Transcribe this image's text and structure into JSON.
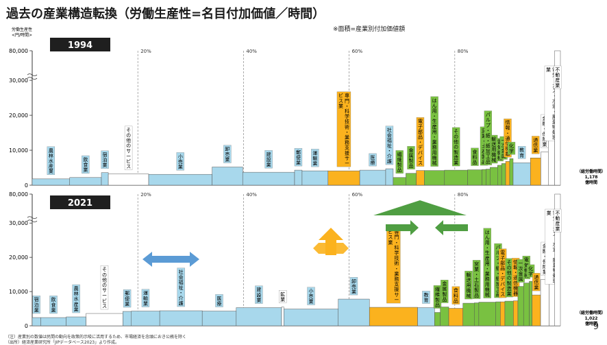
{
  "title": "過去の産業構造転換（労働生産性=名目付加価値／時間）",
  "note": "※面積=産業別付加価値額",
  "page_number": "9",
  "footnotes": [
    "（注）産業別の数値は民間の動向を政策的示唆に活用するため、市場経済を念頭におき公務を除く",
    "（出所）経済産業研究所「JIPデータベース2023」より作成。"
  ],
  "colors": {
    "light_blue": "#a8d8ec",
    "orange": "#fbb21e",
    "green": "#79c141",
    "gray": "#d9d9d9",
    "white": "#ffffff",
    "gain_arrow": "#4f9e42",
    "shift_arrow": "#5b9bd5",
    "orange_arrow": "#fbb21e"
  },
  "chart_data": [
    {
      "type": "area",
      "year_label": "1994",
      "ylabel": "労働生産性<円/時間>",
      "y_ticks": [
        "0",
        "10,000",
        "20,000",
        "30,000",
        "80,000"
      ],
      "x_ticks": [
        "20%",
        "40%",
        "60%",
        "80%"
      ],
      "total_hours": "（総労働時間）\n1,178\n億時間",
      "industries": [
        {
          "name": "農林水産業",
          "share": 6.5,
          "productivity": 1800,
          "color": "light_blue"
        },
        {
          "name": "飲食業",
          "share": 5.5,
          "productivity": 2200,
          "color": "light_blue"
        },
        {
          "name": "宿泊業",
          "share": 1.2,
          "productivity": 3600,
          "color": "light_blue"
        },
        {
          "name": "その他のサービス",
          "share": 7.0,
          "productivity": 3200,
          "color": "white"
        },
        {
          "name": "小売業",
          "share": 11.0,
          "productivity": 3100,
          "color": "light_blue"
        },
        {
          "name": "卸売業",
          "share": 5.3,
          "productivity": 5200,
          "color": "light_blue"
        },
        {
          "name": "建設業",
          "share": 9.0,
          "productivity": 3700,
          "color": "light_blue"
        },
        {
          "name": "郵便業",
          "share": 1.3,
          "productivity": 4300,
          "color": "light_blue"
        },
        {
          "name": "運輸業",
          "share": 4.5,
          "productivity": 4100,
          "color": "light_blue"
        },
        {
          "name": "専門・科学技術、業務支援サービス業",
          "share": 5.5,
          "productivity": 4100,
          "color": "orange"
        },
        {
          "name": "医療",
          "share": 4.5,
          "productivity": 4300,
          "color": "light_blue"
        },
        {
          "name": "社会福祉・介護",
          "share": 1.3,
          "productivity": 4700,
          "color": "light_blue"
        },
        {
          "name": "繊維製品",
          "share": 2.2,
          "productivity": 2200,
          "color": "green"
        },
        {
          "name": "金属製品",
          "share": 1.8,
          "productivity": 3400,
          "color": "green"
        },
        {
          "name": "電子部品・デバイス",
          "share": 1.4,
          "productivity": 4200,
          "color": "orange"
        },
        {
          "name": "はん用・生産用・業務用機械",
          "share": 3.5,
          "productivity": 4200,
          "color": "green"
        },
        {
          "name": "その他の製造業",
          "share": 4.0,
          "productivity": 4300,
          "color": "green"
        },
        {
          "name": "食料品",
          "share": 2.5,
          "productivity": 4400,
          "color": "green"
        },
        {
          "name": "窯業・土石製品",
          "share": 0.7,
          "productivity": 4500,
          "color": "green"
        },
        {
          "name": "パルプ・紙・紙加工品",
          "share": 0.7,
          "productivity": 4600,
          "color": "green"
        },
        {
          "name": "輸送用機械",
          "share": 1.3,
          "productivity": 5100,
          "color": "green"
        },
        {
          "name": "電気機械",
          "share": 0.7,
          "productivity": 5700,
          "color": "green"
        },
        {
          "name": "一次金属",
          "share": 0.7,
          "productivity": 6200,
          "color": "green"
        },
        {
          "name": "情報・通信機器",
          "share": 0.7,
          "productivity": 6800,
          "color": "orange"
        },
        {
          "name": "化学",
          "share": 0.6,
          "productivity": 7600,
          "color": "green"
        },
        {
          "name": "教育",
          "share": 3.0,
          "productivity": 6400,
          "color": "light_blue"
        },
        {
          "name": "通信業",
          "share": 1.8,
          "productivity": 7800,
          "color": "orange"
        },
        {
          "name": "金融・保険業",
          "share": 1.3,
          "productivity": 9500,
          "color": "white"
        },
        {
          "name": "電気・ガス・水道・廃棄物処理業",
          "share": 1.1,
          "productivity": 14500,
          "color": "white"
        },
        {
          "name": "不動産業",
          "share": 1.0,
          "productivity": 80000,
          "color": "white"
        }
      ]
    },
    {
      "type": "area",
      "year_label": "2021",
      "y_ticks": [
        "0",
        "10,000",
        "20,000",
        "30,000",
        "80,000"
      ],
      "x_ticks": [
        "20%",
        "40%",
        "60%",
        "80%"
      ],
      "total_hours": "（総労働時間）\n1,022\n億時間",
      "industries": [
        {
          "name": "宿泊業",
          "share": 1.5,
          "productivity": 2400,
          "color": "light_blue"
        },
        {
          "name": "飲食業",
          "share": 4.5,
          "productivity": 2400,
          "color": "light_blue"
        },
        {
          "name": "農林水産業",
          "share": 3.5,
          "productivity": 2600,
          "color": "light_blue"
        },
        {
          "name": "その他のサービス",
          "share": 6.5,
          "productivity": 3600,
          "color": "white"
        },
        {
          "name": "郵便業",
          "share": 1.5,
          "productivity": 4200,
          "color": "light_blue"
        },
        {
          "name": "運輸業",
          "share": 5.0,
          "productivity": 4300,
          "color": "light_blue"
        },
        {
          "name": "社会福祉・介護",
          "share": 7.5,
          "productivity": 4400,
          "color": "light_blue"
        },
        {
          "name": "医療",
          "share": 6.0,
          "productivity": 4300,
          "color": "light_blue"
        },
        {
          "name": "建設業",
          "share": 8.0,
          "productivity": 5300,
          "color": "light_blue"
        },
        {
          "name": "鉱業",
          "share": 0.4,
          "productivity": 5500,
          "color": "white"
        },
        {
          "name": "小売業",
          "share": 9.6,
          "productivity": 4900,
          "color": "light_blue"
        },
        {
          "name": "卸売業",
          "share": 5.5,
          "productivity": 7800,
          "color": "light_blue"
        },
        {
          "name": "専門・科学技術、業務支援サービス業",
          "share": 8.5,
          "productivity": 5400,
          "color": "orange"
        },
        {
          "name": "教育",
          "share": 3.0,
          "productivity": 5300,
          "color": "light_blue"
        },
        {
          "name": "繊維製品",
          "share": 1.0,
          "productivity": 3900,
          "color": "green"
        },
        {
          "name": "金属製品",
          "share": 1.5,
          "productivity": 5500,
          "color": "green"
        },
        {
          "name": "食料品",
          "share": 2.5,
          "productivity": 5100,
          "color": "orange"
        },
        {
          "name": "輸送用機械",
          "share": 2.0,
          "productivity": 6600,
          "color": "green"
        },
        {
          "name": "窯業・土石製品",
          "share": 0.8,
          "productivity": 6700,
          "color": "green"
        },
        {
          "name": "はん用・生産用・業務用機械",
          "share": 3.0,
          "productivity": 6900,
          "color": "green"
        },
        {
          "name": "パルプ・紙・紙加工品",
          "share": 0.8,
          "productivity": 7000,
          "color": "green"
        },
        {
          "name": "電子部品・デバイス",
          "share": 0.8,
          "productivity": 7000,
          "color": "orange"
        },
        {
          "name": "その他の製造業",
          "share": 1.5,
          "productivity": 7200,
          "color": "green"
        },
        {
          "name": "情報・通信機器",
          "share": 0.8,
          "productivity": 7300,
          "color": "orange"
        },
        {
          "name": "一次金属",
          "share": 1.0,
          "productivity": 11500,
          "color": "green"
        },
        {
          "name": "電気機械",
          "share": 1.0,
          "productivity": 12500,
          "color": "green"
        },
        {
          "name": "化学",
          "share": 0.5,
          "productivity": 13000,
          "color": "green"
        },
        {
          "name": "通信業",
          "share": 1.5,
          "productivity": 9000,
          "color": "orange"
        },
        {
          "name": "金融・保険業",
          "share": 1.5,
          "productivity": 13500,
          "color": "white"
        },
        {
          "name": "電気・ガス・水道・廃棄物処理業",
          "share": 1.0,
          "productivity": 24000,
          "color": "white"
        },
        {
          "name": "不動産業",
          "share": 1.0,
          "productivity": 80000,
          "color": "white"
        }
      ]
    }
  ]
}
